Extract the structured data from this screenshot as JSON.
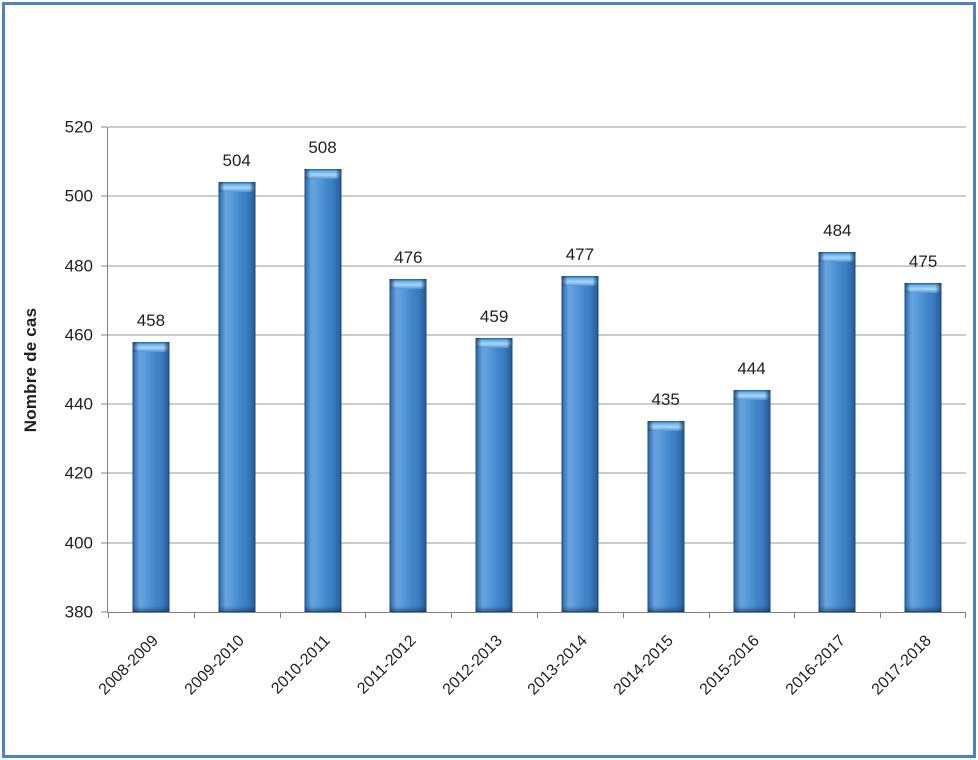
{
  "frame": {
    "border_color": "#4E81BD"
  },
  "chart_data": {
    "type": "bar",
    "title": "",
    "xlabel": "",
    "ylabel": "Nombre de cas",
    "categories": [
      "2008-2009",
      "2009-2010",
      "2010-2011",
      "2011-2012",
      "2012-2013",
      "2013-2014",
      "2014-2015",
      "2015-2016",
      "2016-2017",
      "2017-2018"
    ],
    "values": [
      458,
      504,
      508,
      476,
      459,
      477,
      435,
      444,
      484,
      475
    ],
    "ylim": [
      380,
      520
    ],
    "yticks": [
      380,
      400,
      420,
      440,
      460,
      480,
      500,
      520
    ],
    "grid": true,
    "legend": false,
    "data_labels": true,
    "bar_fill": "#4287CA",
    "bar_highlight": "#A6D7FA",
    "bar_edge": "#26598F",
    "gridline_color": "#999999",
    "axis_color": "#808080",
    "label_color": "#1F1F1F",
    "frame_color": "#4E81BD"
  }
}
